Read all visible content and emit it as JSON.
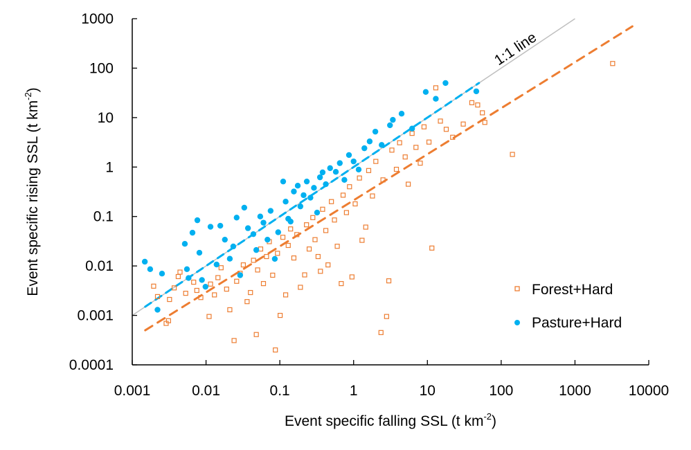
{
  "chart_data": {
    "type": "scatter",
    "title": "",
    "xlabel": "Event specific falling SSL (t km",
    "xlabel_sup": "-2",
    "xlabel_end": ")",
    "ylabel": "Event specific rising SSL (t km",
    "ylabel_sup": "-2",
    "ylabel_end": ")",
    "xscale": "log",
    "yscale": "log",
    "xlim": [
      0.001,
      10000
    ],
    "ylim": [
      0.0001,
      1000
    ],
    "x_ticks": [
      "0.001",
      "0.01",
      "0.1",
      "1",
      "10",
      "100",
      "1000",
      "10000"
    ],
    "y_ticks": [
      "0.0001",
      "0.001",
      "0.01",
      "0.1",
      "1",
      "10",
      "100",
      "1000"
    ],
    "grid": false,
    "legend_position": "bottom-right",
    "annotations": [
      {
        "text": "1:1 line"
      }
    ],
    "reference_line": {
      "name": "1:1 line",
      "x": [
        0.001,
        1000
      ],
      "y": [
        0.001,
        1000
      ],
      "color": "#bfbfbf"
    },
    "series": [
      {
        "name": "Forest+Hard",
        "marker": "open-square",
        "color": "#ed7d31",
        "trendline": {
          "x": [
            0.0015,
            6000
          ],
          "y": [
            0.0005,
            700
          ],
          "style": "dashed"
        },
        "points": [
          [
            0.00195,
            0.0039
          ],
          [
            0.0022,
            0.0024
          ],
          [
            0.00288,
            0.00069
          ],
          [
            0.0031,
            0.00078
          ],
          [
            0.0032,
            0.0021
          ],
          [
            0.0037,
            0.0036
          ],
          [
            0.00444,
            0.0075
          ],
          [
            0.0042,
            0.0061
          ],
          [
            0.0053,
            0.0028
          ],
          [
            0.0068,
            0.0047
          ],
          [
            0.0075,
            0.0032
          ],
          [
            0.0085,
            0.0023
          ],
          [
            0.011,
            0.00095
          ],
          [
            0.0115,
            0.0043
          ],
          [
            0.013,
            0.0026
          ],
          [
            0.0145,
            0.0058
          ],
          [
            0.016,
            0.0092
          ],
          [
            0.019,
            0.0034
          ],
          [
            0.021,
            0.0013
          ],
          [
            0.024,
            0.00031
          ],
          [
            0.026,
            0.0049
          ],
          [
            0.029,
            0.0071
          ],
          [
            0.032,
            0.0105
          ],
          [
            0.036,
            0.0019
          ],
          [
            0.04,
            0.0029
          ],
          [
            0.044,
            0.013
          ],
          [
            0.048,
            0.00041
          ],
          [
            0.05,
            0.0083
          ],
          [
            0.055,
            0.022
          ],
          [
            0.06,
            0.0044
          ],
          [
            0.066,
            0.0155
          ],
          [
            0.072,
            0.031
          ],
          [
            0.08,
            0.0065
          ],
          [
            0.087,
            0.0002
          ],
          [
            0.093,
            0.018
          ],
          [
            0.101,
            0.001
          ],
          [
            0.11,
            0.038
          ],
          [
            0.12,
            0.0026
          ],
          [
            0.13,
            0.026
          ],
          [
            0.14,
            0.056
          ],
          [
            0.155,
            0.0145
          ],
          [
            0.17,
            0.043
          ],
          [
            0.19,
            0.0037
          ],
          [
            0.217,
            0.0066
          ],
          [
            0.23,
            0.068
          ],
          [
            0.25,
            0.022
          ],
          [
            0.28,
            0.095
          ],
          [
            0.3,
            0.034
          ],
          [
            0.33,
            0.0155
          ],
          [
            0.355,
            0.0078
          ],
          [
            0.38,
            0.14
          ],
          [
            0.42,
            0.052
          ],
          [
            0.45,
            0.0105
          ],
          [
            0.5,
            0.2
          ],
          [
            0.55,
            0.085
          ],
          [
            0.6,
            0.025
          ],
          [
            0.68,
            0.0044
          ],
          [
            0.72,
            0.27
          ],
          [
            0.8,
            0.12
          ],
          [
            0.88,
            0.4
          ],
          [
            0.95,
            0.006
          ],
          [
            1.05,
            0.18
          ],
          [
            1.2,
            0.6
          ],
          [
            1.3,
            0.033
          ],
          [
            1.46,
            0.061
          ],
          [
            1.6,
            0.85
          ],
          [
            1.8,
            0.26
          ],
          [
            2.0,
            1.3
          ],
          [
            2.35,
            0.00045
          ],
          [
            2.5,
            0.55
          ],
          [
            2.8,
            0.00095
          ],
          [
            3.0,
            0.005
          ],
          [
            3.3,
            2.2
          ],
          [
            3.8,
            0.9
          ],
          [
            4.2,
            3.1
          ],
          [
            5.0,
            1.6
          ],
          [
            5.5,
            0.45
          ],
          [
            6.2,
            4.8
          ],
          [
            7.0,
            2.5
          ],
          [
            8.0,
            1.2
          ],
          [
            9.0,
            6.5
          ],
          [
            10.5,
            3.2
          ],
          [
            11.5,
            0.023
          ],
          [
            13,
            40
          ],
          [
            15,
            8.5
          ],
          [
            18,
            5.8
          ],
          [
            22,
            4.0
          ],
          [
            30.6,
            7.4
          ],
          [
            40,
            20
          ],
          [
            48,
            18
          ],
          [
            55.6,
            12.5
          ],
          [
            60,
            8.0
          ],
          [
            142,
            1.8
          ],
          [
            3240,
            124
          ]
        ]
      },
      {
        "name": "Pasture+Hard",
        "marker": "filled-circle",
        "color": "#00b0f0",
        "trendline": {
          "x": [
            0.0015,
            50
          ],
          "y": [
            0.0015,
            50
          ],
          "style": "dashed"
        },
        "points": [
          [
            0.00148,
            0.0122
          ],
          [
            0.00175,
            0.0086
          ],
          [
            0.0022,
            0.0013
          ],
          [
            0.00253,
            0.007
          ],
          [
            0.00516,
            0.028
          ],
          [
            0.00551,
            0.0086
          ],
          [
            0.0058,
            0.0057
          ],
          [
            0.00655,
            0.047
          ],
          [
            0.00763,
            0.084
          ],
          [
            0.00813,
            0.0185
          ],
          [
            0.0088,
            0.0052
          ],
          [
            0.00983,
            0.0038
          ],
          [
            0.0115,
            0.062
          ],
          [
            0.0139,
            0.0107
          ],
          [
            0.0156,
            0.065
          ],
          [
            0.018,
            0.034
          ],
          [
            0.021,
            0.014
          ],
          [
            0.0234,
            0.0248
          ],
          [
            0.026,
            0.095
          ],
          [
            0.029,
            0.0065
          ],
          [
            0.033,
            0.151
          ],
          [
            0.037,
            0.058
          ],
          [
            0.0438,
            0.044
          ],
          [
            0.048,
            0.021
          ],
          [
            0.0543,
            0.1
          ],
          [
            0.06,
            0.075
          ],
          [
            0.068,
            0.034
          ],
          [
            0.075,
            0.13
          ],
          [
            0.0855,
            0.0139
          ],
          [
            0.095,
            0.048
          ],
          [
            0.111,
            0.51
          ],
          [
            0.12,
            0.2
          ],
          [
            0.13,
            0.09
          ],
          [
            0.14,
            0.079
          ],
          [
            0.155,
            0.32
          ],
          [
            0.175,
            0.42
          ],
          [
            0.19,
            0.16
          ],
          [
            0.21,
            0.27
          ],
          [
            0.232,
            0.51
          ],
          [
            0.26,
            0.24
          ],
          [
            0.29,
            0.38
          ],
          [
            0.32,
            0.12
          ],
          [
            0.35,
            0.62
          ],
          [
            0.38,
            0.78
          ],
          [
            0.42,
            0.45
          ],
          [
            0.48,
            0.95
          ],
          [
            0.574,
            0.8
          ],
          [
            0.65,
            1.2
          ],
          [
            0.75,
            0.55
          ],
          [
            0.865,
            1.75
          ],
          [
            1.0,
            1.3
          ],
          [
            1.17,
            0.89
          ],
          [
            1.4,
            2.4
          ],
          [
            1.65,
            3.3
          ],
          [
            1.97,
            5.2
          ],
          [
            2.4,
            2.8
          ],
          [
            3.11,
            7.0
          ],
          [
            3.4,
            9.0
          ],
          [
            4.47,
            12
          ],
          [
            6.2,
            6.0
          ],
          [
            9.5,
            33
          ],
          [
            13,
            24
          ],
          [
            17.6,
            50
          ],
          [
            46,
            34
          ]
        ]
      }
    ]
  }
}
